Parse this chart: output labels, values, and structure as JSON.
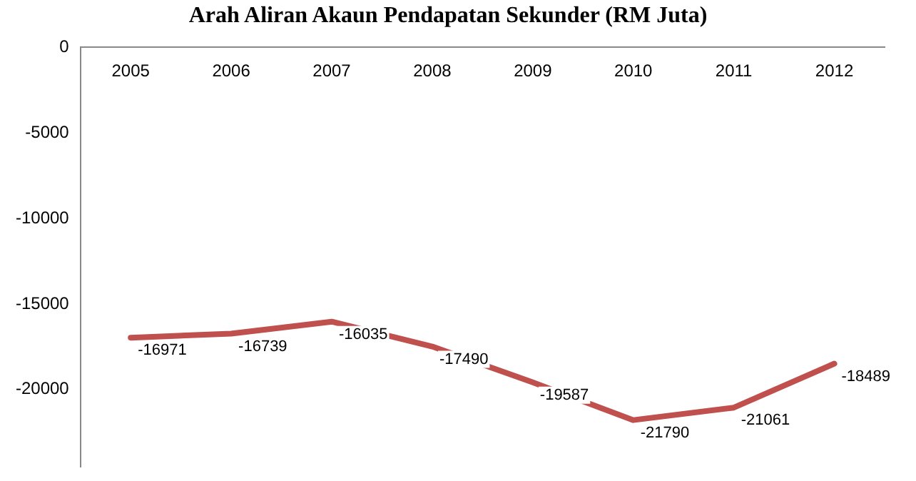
{
  "chart_data": {
    "type": "line",
    "title": "Arah Aliran Akaun Pendapatan Sekunder (RM Juta)",
    "categories": [
      "2005",
      "2006",
      "2007",
      "2008",
      "2009",
      "2010",
      "2011",
      "2012"
    ],
    "series": [
      {
        "color": "#c0504d",
        "values": [
          -16971,
          -16739,
          -16035,
          -17490,
          -19587,
          -21790,
          -21061,
          -18489
        ]
      }
    ],
    "ylim": [
      -24500,
      0
    ],
    "yticks": [
      -20000,
      -15000,
      -10000,
      -5000,
      0
    ],
    "data_labels": true,
    "grid": false,
    "legend": false,
    "marker": "none",
    "line_style": "solid"
  }
}
